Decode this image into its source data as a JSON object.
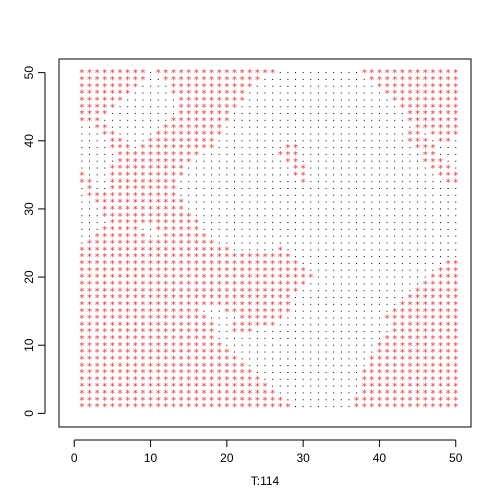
{
  "chart_data": {
    "type": "scatter",
    "title": "",
    "xlabel": "T:114",
    "ylabel": "",
    "xlim": [
      -2,
      52
    ],
    "ylim": [
      -2,
      52
    ],
    "x_ticks": [
      0,
      10,
      20,
      30,
      40,
      50
    ],
    "y_ticks": [
      0,
      10,
      20,
      30,
      40,
      50
    ],
    "x_tick_labels": [
      "0",
      "10",
      "20",
      "30",
      "40",
      "50"
    ],
    "y_tick_labels": [
      "0",
      "10",
      "20",
      "30",
      "40",
      "50"
    ],
    "grid": false,
    "legend": "none",
    "grid_points": {
      "x_from": 1,
      "x_to": 50,
      "y_from": 1,
      "y_to": 50,
      "step": 1
    },
    "series": [
      {
        "marker": "dot",
        "color": "#000000",
        "description_of_set": "all grid cells not in the star set"
      },
      {
        "marker": "star",
        "color": "#e5383b",
        "rows": [
          {
            "y": 50,
            "x_ranges": [
              [
                1,
                9
              ],
              [
                11,
                26
              ],
              [
                38,
                50
              ]
            ]
          },
          {
            "y": 49,
            "x_ranges": [
              [
                1,
                9
              ],
              [
                12,
                24
              ],
              [
                39,
                50
              ]
            ]
          },
          {
            "y": 48,
            "x_ranges": [
              [
                1,
                8
              ],
              [
                13,
                23
              ],
              [
                40,
                50
              ]
            ]
          },
          {
            "y": 47,
            "x_ranges": [
              [
                1,
                7
              ],
              [
                13,
                22
              ],
              [
                41,
                50
              ]
            ]
          },
          {
            "y": 46,
            "x_ranges": [
              [
                1,
                6
              ],
              [
                14,
                22
              ],
              [
                42,
                50
              ]
            ]
          },
          {
            "y": 45,
            "x_ranges": [
              [
                1,
                5
              ],
              [
                14,
                21
              ],
              [
                43,
                50
              ]
            ]
          },
          {
            "y": 44,
            "x_ranges": [
              [
                1,
                4
              ],
              [
                14,
                20
              ],
              [
                44,
                50
              ]
            ]
          },
          {
            "y": 43,
            "x_ranges": [
              [
                1,
                3
              ],
              [
                13,
                20
              ],
              [
                44,
                50
              ]
            ]
          },
          {
            "y": 42,
            "x_ranges": [
              [
                3,
                4
              ],
              [
                12,
                19
              ],
              [
                45,
                50
              ]
            ]
          },
          {
            "y": 41,
            "x_ranges": [
              [
                4,
                5
              ],
              [
                11,
                19
              ],
              [
                44,
                45
              ],
              [
                47,
                50
              ]
            ]
          },
          {
            "y": 40,
            "x_ranges": [
              [
                5,
                6
              ],
              [
                10,
                18
              ],
              [
                44,
                46
              ],
              [
                48,
                49
              ]
            ]
          },
          {
            "y": 39,
            "x_ranges": [
              [
                5,
                7
              ],
              [
                9,
                18
              ],
              [
                28,
                29
              ],
              [
                45,
                47
              ]
            ]
          },
          {
            "y": 38,
            "x_ranges": [
              [
                6,
                16
              ],
              [
                27,
                29
              ],
              [
                46,
                47
              ]
            ]
          },
          {
            "y": 37,
            "x_ranges": [
              [
                6,
                15
              ],
              [
                28,
                29
              ],
              [
                46,
                48
              ]
            ]
          },
          {
            "y": 36,
            "x_ranges": [
              [
                5,
                14
              ],
              [
                29,
                30
              ],
              [
                47,
                49
              ]
            ]
          },
          {
            "y": 35,
            "x_ranges": [
              [
                1,
                1
              ],
              [
                5,
                14
              ],
              [
                29,
                30
              ],
              [
                48,
                49
              ],
              [
                50,
                50
              ]
            ]
          },
          {
            "y": 34,
            "x_ranges": [
              [
                1,
                2
              ],
              [
                5,
                13
              ],
              [
                30,
                30
              ],
              [
                49,
                50
              ]
            ]
          },
          {
            "y": 33,
            "x_ranges": [
              [
                2,
                2
              ],
              [
                5,
                13
              ]
            ]
          },
          {
            "y": 32,
            "x_ranges": [
              [
                2,
                4
              ],
              [
                5,
                13
              ]
            ]
          },
          {
            "y": 31,
            "x_ranges": [
              [
                3,
                4
              ],
              [
                5,
                14
              ]
            ]
          },
          {
            "y": 30,
            "x_ranges": [
              [
                4,
                14
              ]
            ]
          },
          {
            "y": 29,
            "x_ranges": [
              [
                4,
                15
              ]
            ]
          },
          {
            "y": 28,
            "x_ranges": [
              [
                5,
                16
              ]
            ]
          },
          {
            "y": 27,
            "x_ranges": [
              [
                4,
                8
              ],
              [
                11,
                16
              ]
            ]
          },
          {
            "y": 26,
            "x_ranges": [
              [
                3,
                9
              ],
              [
                12,
                17
              ]
            ]
          },
          {
            "y": 25,
            "x_ranges": [
              [
                2,
                18
              ]
            ]
          },
          {
            "y": 24,
            "x_ranges": [
              [
                1,
                20
              ],
              [
                27,
                27
              ]
            ]
          },
          {
            "y": 23,
            "x_ranges": [
              [
                1,
                28
              ]
            ]
          },
          {
            "y": 22,
            "x_ranges": [
              [
                1,
                29
              ],
              [
                49,
                50
              ]
            ]
          },
          {
            "y": 21,
            "x_ranges": [
              [
                1,
                30
              ],
              [
                48,
                50
              ]
            ]
          },
          {
            "y": 20,
            "x_ranges": [
              [
                1,
                31
              ],
              [
                47,
                50
              ]
            ]
          },
          {
            "y": 19,
            "x_ranges": [
              [
                1,
                30
              ],
              [
                46,
                50
              ]
            ]
          },
          {
            "y": 18,
            "x_ranges": [
              [
                1,
                29
              ],
              [
                45,
                50
              ]
            ]
          },
          {
            "y": 17,
            "x_ranges": [
              [
                1,
                28
              ],
              [
                44,
                50
              ]
            ]
          },
          {
            "y": 16,
            "x_ranges": [
              [
                1,
                28
              ],
              [
                43,
                50
              ]
            ]
          },
          {
            "y": 15,
            "x_ranges": [
              [
                1,
                16
              ],
              [
                20,
                28
              ],
              [
                42,
                50
              ]
            ]
          },
          {
            "y": 14,
            "x_ranges": [
              [
                1,
                17
              ],
              [
                22,
                27
              ],
              [
                41,
                50
              ]
            ]
          },
          {
            "y": 13,
            "x_ranges": [
              [
                1,
                18
              ],
              [
                21,
                26
              ],
              [
                42,
                50
              ]
            ]
          },
          {
            "y": 12,
            "x_ranges": [
              [
                1,
                18
              ],
              [
                21,
                23
              ],
              [
                42,
                50
              ]
            ]
          },
          {
            "y": 11,
            "x_ranges": [
              [
                1,
                18
              ],
              [
                41,
                50
              ]
            ]
          },
          {
            "y": 10,
            "x_ranges": [
              [
                1,
                19
              ],
              [
                40,
                50
              ]
            ]
          },
          {
            "y": 9,
            "x_ranges": [
              [
                1,
                20
              ],
              [
                40,
                50
              ]
            ]
          },
          {
            "y": 8,
            "x_ranges": [
              [
                1,
                21
              ],
              [
                39,
                50
              ]
            ]
          },
          {
            "y": 7,
            "x_ranges": [
              [
                1,
                22
              ],
              [
                39,
                50
              ]
            ]
          },
          {
            "y": 6,
            "x_ranges": [
              [
                1,
                23
              ],
              [
                38,
                50
              ]
            ]
          },
          {
            "y": 5,
            "x_ranges": [
              [
                1,
                24
              ],
              [
                38,
                50
              ]
            ]
          },
          {
            "y": 4,
            "x_ranges": [
              [
                1,
                25
              ],
              [
                38,
                50
              ]
            ]
          },
          {
            "y": 3,
            "x_ranges": [
              [
                1,
                26
              ],
              [
                38,
                50
              ]
            ]
          },
          {
            "y": 2,
            "x_ranges": [
              [
                1,
                27
              ],
              [
                37,
                50
              ]
            ]
          },
          {
            "y": 1,
            "x_ranges": [
              [
                1,
                28
              ],
              [
                37,
                50
              ]
            ]
          }
        ]
      }
    ]
  }
}
